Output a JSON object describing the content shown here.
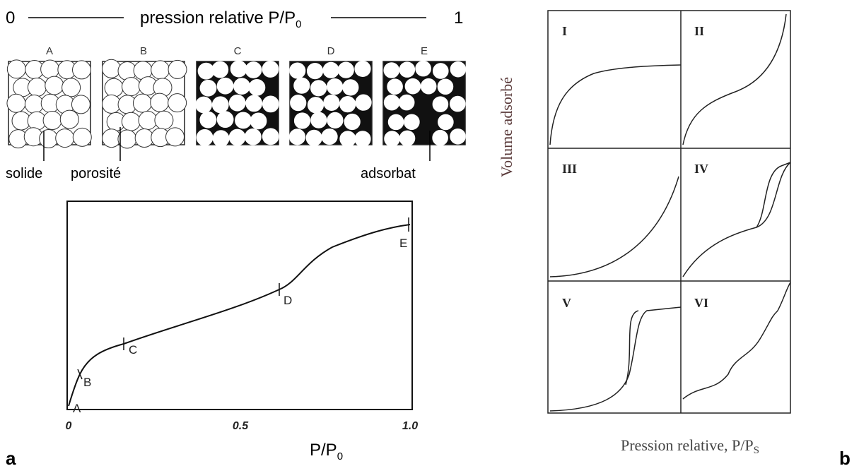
{
  "panel_a": {
    "scale": {
      "start": "0",
      "label": "pression relative P/P",
      "label_sub": "0",
      "end": "1"
    },
    "stages": [
      "A",
      "B",
      "C",
      "D",
      "E"
    ],
    "callouts": [
      "solide",
      "porosité",
      "adsorbat"
    ],
    "plot": {
      "point_labels": [
        "A",
        "B",
        "C",
        "D",
        "E"
      ],
      "x_tick_labels": [
        "0",
        "0.5",
        "1.0"
      ],
      "x_label": "P/P",
      "x_label_sub": "0"
    },
    "panel_label": "a"
  },
  "panel_b": {
    "y_label": "Volume adsorbé",
    "x_label": "Pression relative, P/P",
    "x_label_sub": "S",
    "types": [
      "I",
      "II",
      "III",
      "IV",
      "V",
      "VI"
    ],
    "panel_label": "b"
  }
}
